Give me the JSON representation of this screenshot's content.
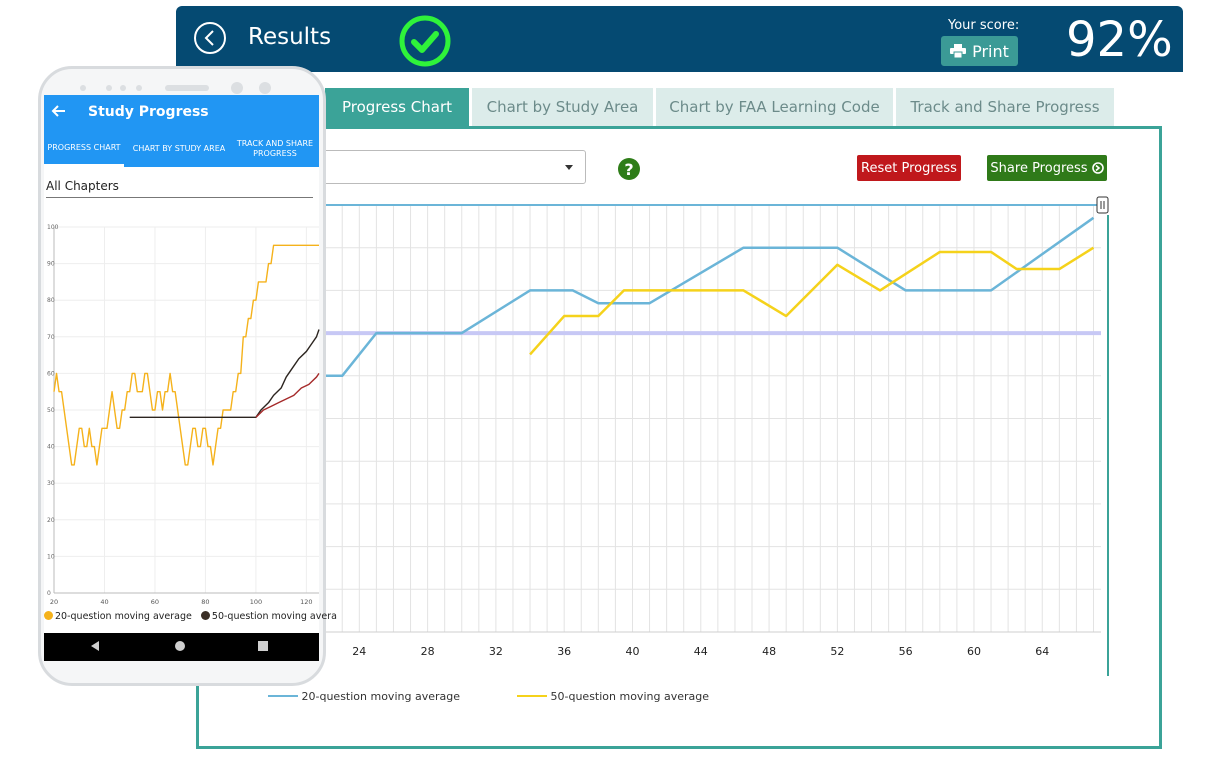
{
  "header": {
    "title": "Results",
    "score_label": "Your score:",
    "print_label": "Print",
    "score_value": "92%"
  },
  "tabs": [
    {
      "label": "Progress Chart",
      "active": true
    },
    {
      "label": "Chart by Study Area",
      "active": false
    },
    {
      "label": "Chart by FAA Learning Code",
      "active": false
    },
    {
      "label": "Track and Share Progress",
      "active": false
    }
  ],
  "toolbar": {
    "help_symbol": "?",
    "reset_label": "Reset Progress",
    "share_label": "Share Progress"
  },
  "colors": {
    "header": "#054a72",
    "accent": "#3ba398",
    "reset": "#c0181c",
    "share": "#2f7a19",
    "series20": "#6bb5d8",
    "series50": "#f5d21b",
    "passing": "#c7c8f5"
  },
  "chart_data": [
    {
      "type": "line",
      "x_tick_labels": [
        "24",
        "28",
        "32",
        "36",
        "40",
        "44",
        "48",
        "52",
        "56",
        "60",
        "64"
      ],
      "xlim": [
        20,
        67
      ],
      "ylim": [
        0,
        100
      ],
      "passing_line": 70,
      "grid": true,
      "legend_position": "bottom-left",
      "series": [
        {
          "name": "20-question moving average",
          "x": [
            20,
            23,
            25,
            29,
            30,
            34,
            36.5,
            38,
            41,
            46.5,
            52,
            56,
            61,
            67
          ],
          "y": [
            60,
            60,
            70,
            70,
            70,
            80,
            80,
            77,
            77,
            90,
            90,
            80,
            80,
            97
          ]
        },
        {
          "name": "50-question moving average",
          "x": [
            34,
            36,
            38,
            39.5,
            43,
            46.5,
            49,
            52,
            54.5,
            58,
            61,
            62.5,
            65,
            67
          ],
          "y": [
            65,
            74,
            74,
            80,
            80,
            80,
            74,
            86,
            80,
            89,
            89,
            85,
            85,
            90
          ]
        }
      ]
    },
    {
      "type": "line",
      "x_tick_labels": [
        "20",
        "40",
        "60",
        "80",
        "100",
        "120"
      ],
      "y_tick_labels": [
        "0",
        "10",
        "20",
        "30",
        "40",
        "50",
        "60",
        "70",
        "80",
        "90",
        "100"
      ],
      "xlim": [
        20,
        125
      ],
      "ylim": [
        0,
        100
      ],
      "grid": true,
      "legend_position": "bottom",
      "series": [
        {
          "name": "20-question moving average",
          "x": [
            20,
            21,
            22,
            23,
            24,
            25,
            26,
            27,
            28,
            29,
            30,
            31,
            32,
            33,
            34,
            35,
            36,
            37,
            38,
            39,
            40,
            41,
            42,
            43,
            44,
            45,
            46,
            47,
            48,
            49,
            50,
            51,
            52,
            53,
            54,
            55,
            56,
            57,
            58,
            59,
            60,
            61,
            62,
            63,
            64,
            65,
            66,
            67,
            68,
            69,
            70,
            71,
            72,
            73,
            74,
            75,
            76,
            77,
            78,
            79,
            80,
            81,
            82,
            83,
            84,
            85,
            86,
            87,
            88,
            89,
            90,
            91,
            92,
            93,
            94,
            95,
            96,
            97,
            98,
            99,
            100,
            101,
            102,
            103,
            104,
            105,
            106,
            107,
            108,
            109,
            110,
            111,
            112,
            113,
            114,
            115,
            116,
            117,
            118,
            119,
            120,
            121,
            122,
            123,
            124,
            125
          ],
          "y": [
            55,
            60,
            55,
            55,
            50,
            45,
            40,
            35,
            35,
            40,
            45,
            45,
            40,
            40,
            45,
            40,
            40,
            35,
            40,
            45,
            45,
            45,
            50,
            55,
            50,
            45,
            45,
            50,
            50,
            55,
            55,
            60,
            60,
            55,
            55,
            55,
            60,
            60,
            55,
            50,
            50,
            55,
            55,
            50,
            55,
            55,
            60,
            55,
            55,
            50,
            45,
            40,
            35,
            35,
            40,
            45,
            45,
            40,
            40,
            45,
            45,
            40,
            40,
            35,
            40,
            45,
            45,
            50,
            50,
            50,
            50,
            55,
            55,
            60,
            60,
            70,
            70,
            75,
            75,
            80,
            80,
            85,
            85,
            85,
            85,
            90,
            90,
            95,
            95,
            95,
            95,
            95,
            95,
            95,
            95,
            95,
            95,
            95,
            95,
            95,
            95,
            95,
            95,
            95,
            95,
            95
          ]
        },
        {
          "name": "50-question moving average",
          "x": [
            50,
            100,
            102,
            105,
            107,
            110,
            112,
            115,
            117,
            120,
            122,
            124,
            125
          ],
          "y": [
            48,
            48,
            50,
            52,
            54,
            56,
            59,
            62,
            64,
            66,
            68,
            70,
            72
          ]
        },
        {
          "name": "",
          "x": [
            100,
            103,
            106,
            109,
            112,
            115,
            118,
            121,
            124,
            125
          ],
          "y": [
            48,
            50,
            51,
            52,
            53,
            54,
            56,
            57,
            59,
            60
          ]
        }
      ]
    }
  ],
  "phone": {
    "title": "Study Progress",
    "tabs": [
      "PROGRESS CHART",
      "CHART BY STUDY AREA",
      "TRACK AND SHARE PROGRESS"
    ],
    "dropdown": "All Chapters",
    "legend": [
      "20-question moving average",
      "50-question moving avera"
    ]
  }
}
